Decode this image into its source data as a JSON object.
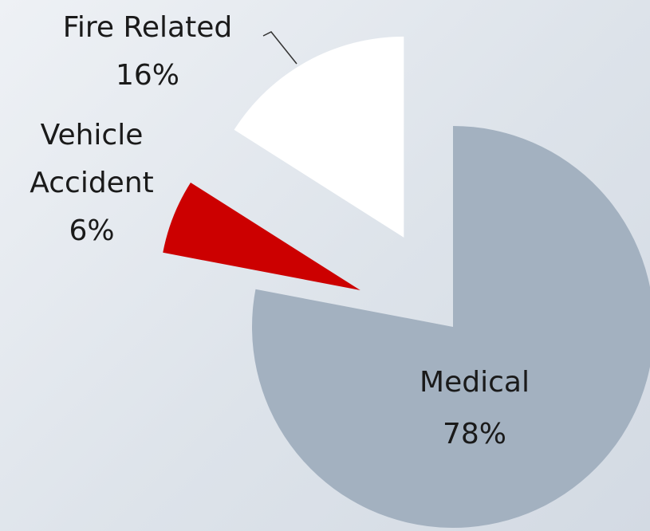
{
  "chart_data": {
    "type": "pie",
    "categories": [
      "Medical",
      "Vehicle Accident",
      "Fire Related"
    ],
    "values": [
      78,
      6,
      16
    ],
    "value_labels": [
      "78%",
      "6%",
      "16%"
    ],
    "colors": [
      "#a3b1c0",
      "#cc0000",
      "#ffffff"
    ]
  }
}
